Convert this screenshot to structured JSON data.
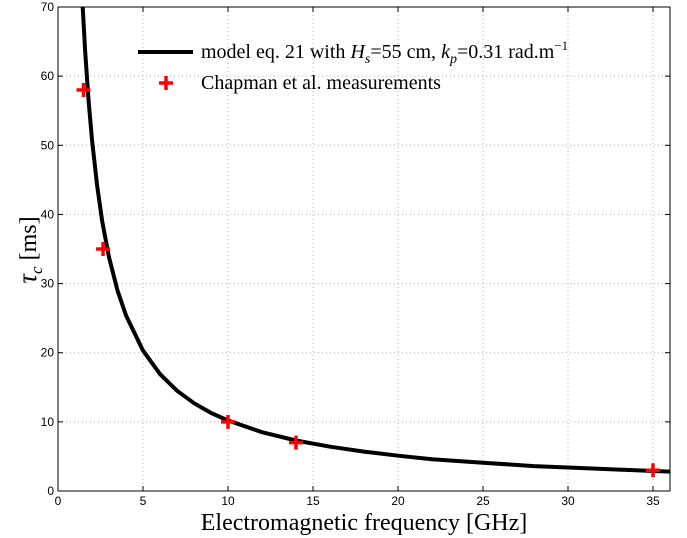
{
  "chart_data": {
    "type": "line",
    "xlabel": "Electromagnetic frequency [GHz]",
    "ylabel": {
      "symbol": "τ",
      "subscript": "c",
      "unit": " [ms]"
    },
    "xlim": [
      0,
      36
    ],
    "ylim": [
      0,
      70
    ],
    "xticks": [
      "0",
      "5",
      "10",
      "15",
      "20",
      "25",
      "30",
      "35"
    ],
    "yticks": [
      "0",
      "10",
      "20",
      "30",
      "40",
      "50",
      "60",
      "70"
    ],
    "grid": "dotted",
    "legend_position": "top-right",
    "legend": {
      "model_label": {
        "prefix": "model eq. 21 with ",
        "hs_symbol": "H",
        "hs_sub": "s",
        "hs_value": "=55 cm, ",
        "kp_symbol": "k",
        "kp_sub": "p",
        "kp_value": "=0.31 rad.m",
        "kp_exp": "−1"
      },
      "measure_label": "Chapman et al. measurements"
    },
    "series": [
      {
        "kind": "line",
        "color": "#000000",
        "x": [
          1.45,
          1.6,
          1.8,
          2.0,
          2.3,
          2.6,
          3.0,
          3.5,
          4.0,
          5.0,
          6.0,
          7.0,
          8.0,
          9.0,
          10.0,
          12.0,
          14.0,
          16.0,
          18.0,
          20.0,
          22.0,
          25.0,
          28.0,
          30.0,
          33.0,
          36.0
        ],
        "y": [
          70.0,
          63.5,
          56.4,
          50.8,
          44.2,
          39.0,
          33.8,
          29.0,
          25.4,
          20.3,
          16.9,
          14.5,
          12.7,
          11.3,
          10.2,
          8.5,
          7.3,
          6.4,
          5.7,
          5.1,
          4.6,
          4.1,
          3.6,
          3.4,
          3.1,
          2.8
        ]
      },
      {
        "kind": "markers",
        "marker": "plus",
        "color": "#ff0000",
        "x": [
          1.5,
          2.65,
          10.0,
          14.0,
          35.0
        ],
        "y": [
          58.0,
          35.0,
          10.0,
          7.0,
          3.0
        ]
      }
    ]
  }
}
